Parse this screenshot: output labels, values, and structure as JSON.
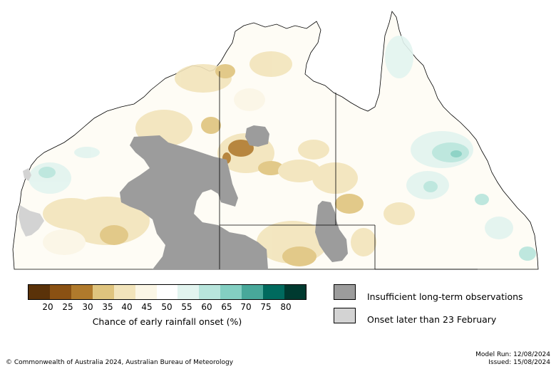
{
  "map": {
    "land_color": "#ffffff",
    "insufficient_color": "#9c9c9c",
    "later_onset_color": "#d3d3d3",
    "ocean_color": "#ffffff"
  },
  "colorbar": {
    "label": "Chance of early rainfall onset (%)",
    "colors": [
      "#5a3209",
      "#8a5113",
      "#b07a2c",
      "#dfc47e",
      "#f2e4bb",
      "#fbf6e6",
      "#ffffff",
      "#e2f4ef",
      "#b8e5dc",
      "#83cfc2",
      "#48a89a",
      "#006a5e",
      "#003a30"
    ],
    "ticks": [
      "20",
      "25",
      "30",
      "35",
      "40",
      "45",
      "50",
      "55",
      "60",
      "65",
      "70",
      "75",
      "80"
    ]
  },
  "legend": {
    "insufficient_label": "Insufficient long-term observations",
    "later_label": "Onset later than 23 February"
  },
  "footer": {
    "copyright": "© Commonwealth of Australia 2024, Australian Bureau of Meteorology",
    "model_run": "Model Run: 12/08/2024",
    "issued": "Issued: 15/08/2024"
  }
}
